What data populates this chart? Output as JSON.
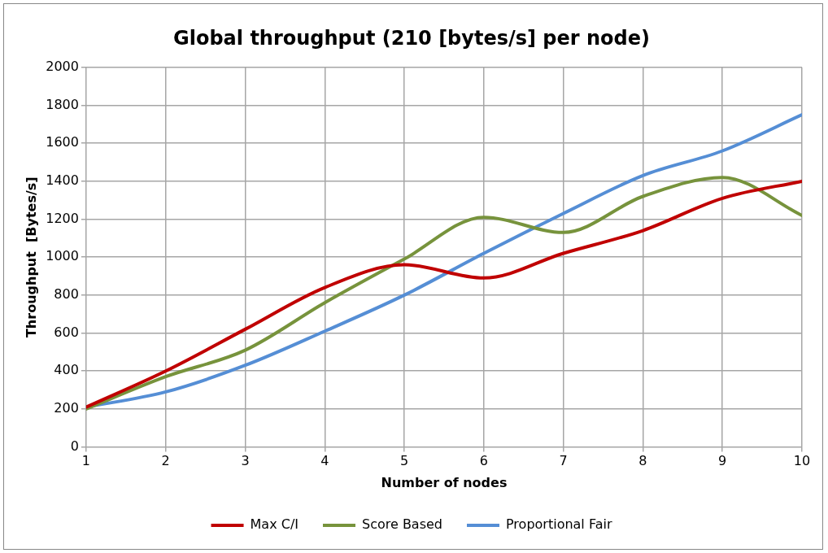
{
  "chart_data": {
    "type": "line",
    "title": "Global throughput (210 [bytes/s] per node)",
    "xlabel": "Number of nodes",
    "ylabel": "Throughput  [Bytes/s]",
    "x": [
      1,
      2,
      3,
      4,
      5,
      6,
      7,
      8,
      9,
      10
    ],
    "series": [
      {
        "name": "Max C/I",
        "color": "#c00000",
        "values": [
          210,
          400,
          620,
          840,
          960,
          890,
          1020,
          1140,
          1310,
          1400
        ]
      },
      {
        "name": "Score Based",
        "color": "#77933c",
        "values": [
          200,
          370,
          510,
          760,
          990,
          1210,
          1130,
          1320,
          1420,
          1220
        ]
      },
      {
        "name": "Proportional Fair",
        "color": "#558ed5",
        "values": [
          210,
          290,
          430,
          610,
          800,
          1020,
          1230,
          1430,
          1560,
          1750
        ]
      }
    ],
    "xlim": [
      1,
      10
    ],
    "xticks": [
      1,
      2,
      3,
      4,
      5,
      6,
      7,
      8,
      9,
      10
    ],
    "ylim": [
      0,
      2000
    ],
    "yticks": [
      0,
      200,
      400,
      600,
      800,
      1000,
      1200,
      1400,
      1600,
      1800,
      2000
    ],
    "grid": true,
    "legend": "bottom",
    "marker": "none",
    "line_style": "solid"
  }
}
